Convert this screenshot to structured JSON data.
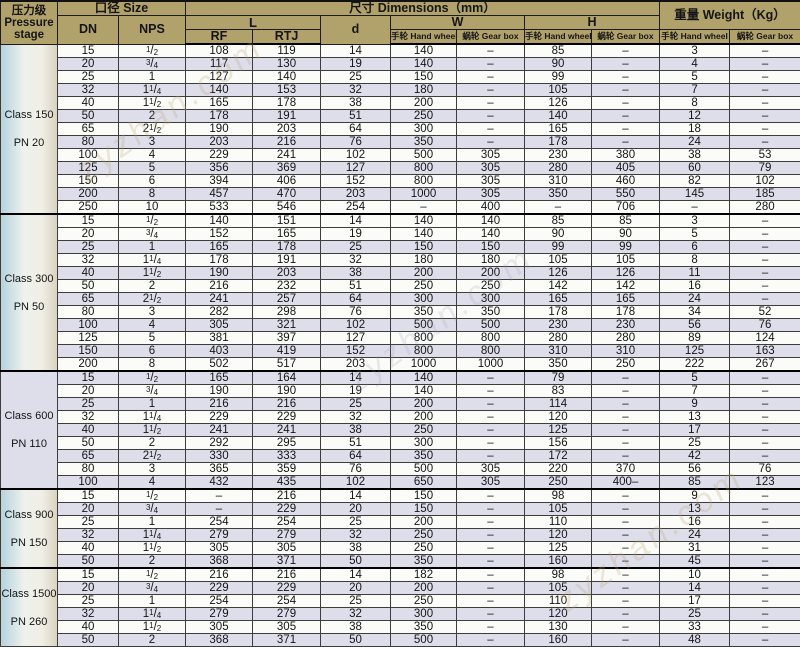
{
  "header": {
    "pressure_stage": [
      "压力级",
      "Pressure",
      "stage"
    ],
    "size": "口径 Size",
    "dimensions": "尺寸 Dimensions（mm）",
    "weight": "重量 Weight（Kg）",
    "dn": "DN",
    "nps": "NPS",
    "l": "L",
    "rf": "RF",
    "rtj": "RTJ",
    "d": "d",
    "w": "W",
    "h": "H",
    "hand_wheel": "手轮 Hand wheel",
    "gear_box": "蜗轮 Gear box"
  },
  "columns": [
    "dn",
    "nps",
    "l_rf",
    "l_rtj",
    "d",
    "w_hand_wheel",
    "w_gear_box",
    "h_hand_wheel",
    "h_gear_box",
    "weight_hand_wheel",
    "weight_gear_box"
  ],
  "groups": [
    {
      "class_label": "Class 150",
      "pn_label": "PN 20",
      "rows": [
        [
          "15",
          "1/2",
          "108",
          "119",
          "14",
          "140",
          "–",
          "85",
          "–",
          "3",
          "–"
        ],
        [
          "20",
          "3/4",
          "117",
          "130",
          "19",
          "140",
          "–",
          "90",
          "–",
          "4",
          "–"
        ],
        [
          "25",
          "1",
          "127",
          "140",
          "25",
          "150",
          "–",
          "99",
          "–",
          "5",
          "–"
        ],
        [
          "32",
          "1 1/4",
          "140",
          "153",
          "32",
          "180",
          "–",
          "105",
          "–",
          "7",
          "–"
        ],
        [
          "40",
          "1 1/2",
          "165",
          "178",
          "38",
          "200",
          "–",
          "126",
          "–",
          "8",
          "–"
        ],
        [
          "50",
          "2",
          "178",
          "191",
          "51",
          "250",
          "–",
          "140",
          "–",
          "12",
          "–"
        ],
        [
          "65",
          "2 1/2",
          "190",
          "203",
          "64",
          "300",
          "–",
          "165",
          "–",
          "18",
          "–"
        ],
        [
          "80",
          "3",
          "203",
          "216",
          "76",
          "350",
          "–",
          "178",
          "–",
          "24",
          "–"
        ],
        [
          "100",
          "4",
          "229",
          "241",
          "102",
          "500",
          "305",
          "230",
          "380",
          "38",
          "53"
        ],
        [
          "125",
          "5",
          "356",
          "369",
          "127",
          "800",
          "305",
          "280",
          "405",
          "60",
          "79"
        ],
        [
          "150",
          "6",
          "394",
          "406",
          "152",
          "800",
          "305",
          "310",
          "460",
          "82",
          "102"
        ],
        [
          "200",
          "8",
          "457",
          "470",
          "203",
          "1000",
          "305",
          "350",
          "550",
          "145",
          "185"
        ],
        [
          "250",
          "10",
          "533",
          "546",
          "254",
          "–",
          "400",
          "–",
          "706",
          "–",
          "280"
        ]
      ]
    },
    {
      "class_label": "Class 300",
      "pn_label": "PN 50",
      "rows": [
        [
          "15",
          "1/2",
          "140",
          "151",
          "14",
          "140",
          "140",
          "85",
          "85",
          "3",
          "–"
        ],
        [
          "20",
          "3/4",
          "152",
          "165",
          "19",
          "140",
          "140",
          "90",
          "90",
          "5",
          "–"
        ],
        [
          "25",
          "1",
          "165",
          "178",
          "25",
          "150",
          "150",
          "99",
          "99",
          "6",
          "–"
        ],
        [
          "32",
          "1 1/4",
          "178",
          "191",
          "32",
          "180",
          "180",
          "105",
          "105",
          "8",
          "–"
        ],
        [
          "40",
          "1 1/2",
          "190",
          "203",
          "38",
          "200",
          "200",
          "126",
          "126",
          "11",
          "–"
        ],
        [
          "50",
          "2",
          "216",
          "232",
          "51",
          "250",
          "250",
          "142",
          "142",
          "16",
          "–"
        ],
        [
          "65",
          "2 1/2",
          "241",
          "257",
          "64",
          "300",
          "300",
          "165",
          "165",
          "24",
          "–"
        ],
        [
          "80",
          "3",
          "282",
          "298",
          "76",
          "350",
          "350",
          "178",
          "178",
          "34",
          "52"
        ],
        [
          "100",
          "4",
          "305",
          "321",
          "102",
          "500",
          "500",
          "230",
          "230",
          "56",
          "76"
        ],
        [
          "125",
          "5",
          "381",
          "397",
          "127",
          "800",
          "800",
          "280",
          "280",
          "89",
          "124"
        ],
        [
          "150",
          "6",
          "403",
          "419",
          "152",
          "800",
          "800",
          "310",
          "310",
          "125",
          "163"
        ],
        [
          "200",
          "8",
          "502",
          "517",
          "203",
          "1000",
          "1000",
          "350",
          "250",
          "222",
          "267"
        ]
      ]
    },
    {
      "class_label": "Class 600",
      "pn_label": "PN 110",
      "rows": [
        [
          "15",
          "1/2",
          "165",
          "164",
          "14",
          "140",
          "–",
          "79",
          "–",
          "5",
          "–"
        ],
        [
          "20",
          "3/4",
          "190",
          "190",
          "19",
          "140",
          "–",
          "83",
          "–",
          "7",
          "–"
        ],
        [
          "25",
          "1",
          "216",
          "216",
          "25",
          "200",
          "–",
          "114",
          "–",
          "9",
          "–"
        ],
        [
          "32",
          "1 1/4",
          "229",
          "229",
          "32",
          "200",
          "–",
          "120",
          "–",
          "13",
          "–"
        ],
        [
          "40",
          "1 1/2",
          "241",
          "241",
          "38",
          "250",
          "–",
          "125",
          "–",
          "17",
          "–"
        ],
        [
          "50",
          "2",
          "292",
          "295",
          "51",
          "300",
          "–",
          "156",
          "–",
          "25",
          "–"
        ],
        [
          "65",
          "2 1/2",
          "330",
          "333",
          "64",
          "350",
          "–",
          "172",
          "–",
          "42",
          "–"
        ],
        [
          "80",
          "3",
          "365",
          "359",
          "76",
          "500",
          "305",
          "220",
          "370",
          "56",
          "76"
        ],
        [
          "100",
          "4",
          "432",
          "435",
          "102",
          "650",
          "305",
          "250",
          "400–",
          "85",
          "123"
        ]
      ]
    },
    {
      "class_label": "Class 900",
      "pn_label": "PN 150",
      "rows": [
        [
          "15",
          "1/2",
          "–",
          "216",
          "14",
          "150",
          "–",
          "98",
          "–",
          "9",
          "–"
        ],
        [
          "20",
          "3/4",
          "–",
          "229",
          "20",
          "150",
          "–",
          "105",
          "–",
          "13",
          "–"
        ],
        [
          "25",
          "1",
          "254",
          "254",
          "25",
          "200",
          "–",
          "110",
          "–",
          "16",
          "–"
        ],
        [
          "32",
          "1 1/4",
          "279",
          "279",
          "32",
          "250",
          "–",
          "120",
          "–",
          "24",
          "–"
        ],
        [
          "40",
          "1 1/2",
          "305",
          "305",
          "38",
          "250",
          "–",
          "125",
          "–",
          "31",
          "–"
        ],
        [
          "50",
          "2",
          "368",
          "371",
          "50",
          "350",
          "–",
          "160",
          "–",
          "45",
          "–"
        ]
      ]
    },
    {
      "class_label": "Class 1500",
      "pn_label": "PN 260",
      "rows": [
        [
          "15",
          "1/2",
          "216",
          "216",
          "14",
          "182",
          "–",
          "98",
          "–",
          "10",
          "–"
        ],
        [
          "20",
          "3/4",
          "229",
          "229",
          "20",
          "200",
          "–",
          "105",
          "–",
          "14",
          "–"
        ],
        [
          "25",
          "1",
          "254",
          "254",
          "25",
          "250",
          "–",
          "110",
          "–",
          "17",
          "–"
        ],
        [
          "32",
          "1 1/4",
          "279",
          "279",
          "32",
          "300",
          "–",
          "120",
          "–",
          "25",
          "–"
        ],
        [
          "40",
          "1 1/2",
          "305",
          "305",
          "38",
          "350",
          "–",
          "130",
          "–",
          "33",
          "–"
        ],
        [
          "50",
          "2",
          "368",
          "371",
          "50",
          "500",
          "–",
          "160",
          "–",
          "48",
          "–"
        ]
      ]
    }
  ],
  "watermark": "zyzhan.com",
  "colors": {
    "header_bg": "#b1a26c",
    "row": "#fbfbf8",
    "row_alt": "#dedeeb",
    "grid": "#3d3d3d",
    "group_cell_left": "#b7d3de",
    "group_cell_right": "#d9d3c0"
  }
}
